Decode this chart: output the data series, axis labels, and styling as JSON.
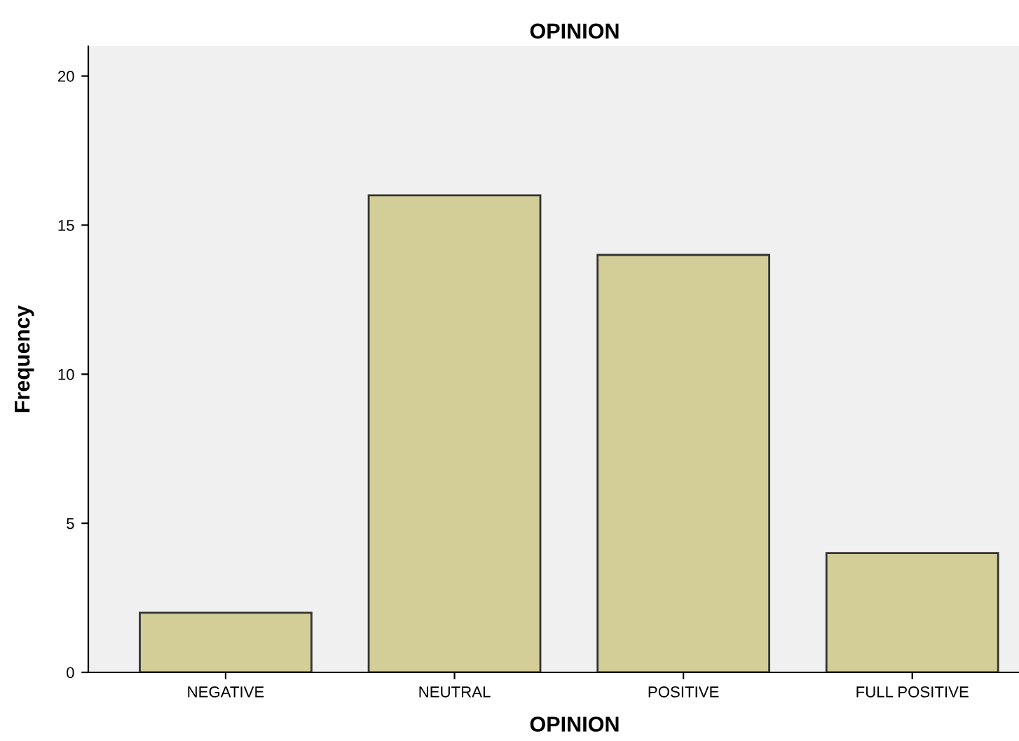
{
  "chart_data": {
    "type": "bar",
    "title": "OPINION",
    "xlabel": "OPINION",
    "ylabel": "Frequency",
    "categories": [
      "NEGATIVE",
      "NEUTRAL",
      "POSITIVE",
      "FULL POSITIVE"
    ],
    "values": [
      2,
      16,
      14,
      4
    ],
    "color": "#d3ce97",
    "ylim": [
      0,
      21
    ],
    "yticks": [
      0,
      5,
      10,
      15,
      20
    ],
    "grid": false
  }
}
